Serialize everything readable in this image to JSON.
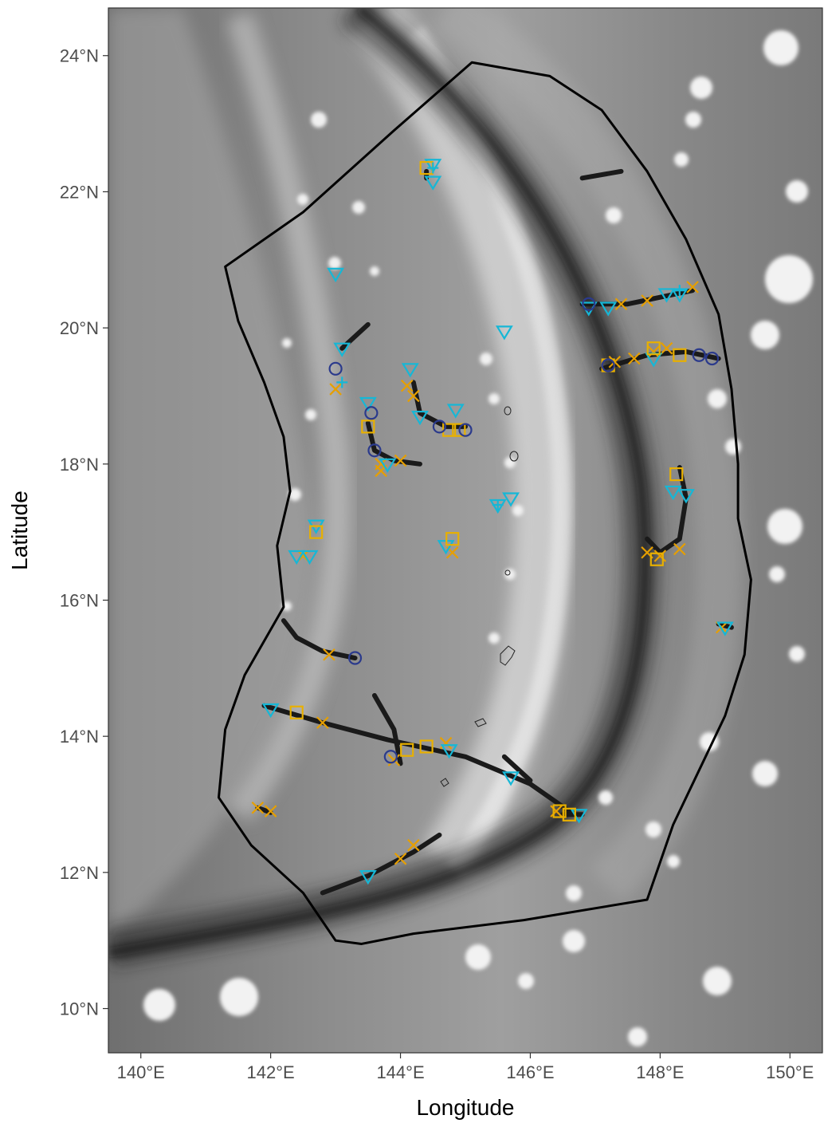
{
  "chart_data": {
    "type": "scatter",
    "title": "",
    "xlabel": "Longitude",
    "ylabel": "Latitude",
    "xlim": [
      139.5,
      150.5
    ],
    "ylim": [
      9.35,
      24.7
    ],
    "x_ticks": [
      {
        "value": 140,
        "label": "140°E"
      },
      {
        "value": 142,
        "label": "142°E"
      },
      {
        "value": 144,
        "label": "144°E"
      },
      {
        "value": 146,
        "label": "146°E"
      },
      {
        "value": 148,
        "label": "148°E"
      },
      {
        "value": 150,
        "label": "150°E"
      }
    ],
    "y_ticks": [
      {
        "value": 10,
        "label": "10°N"
      },
      {
        "value": 12,
        "label": "12°N"
      },
      {
        "value": 14,
        "label": "14°N"
      },
      {
        "value": 16,
        "label": "16°N"
      },
      {
        "value": 18,
        "label": "18°N"
      },
      {
        "value": 20,
        "label": "20°N"
      },
      {
        "value": 22,
        "label": "22°N"
      },
      {
        "value": 24,
        "label": "24°N"
      }
    ],
    "grid": false,
    "legend": "none",
    "basemap": "grayscale bathymetry",
    "colors": {
      "orange": "#e69f00",
      "gold": "#e8b000",
      "cyan": "#16b7d6",
      "navy": "#2b3a8c",
      "track": "#1a1a1a",
      "boundary": "#000000"
    },
    "study_area_boundary": [
      [
        145.1,
        23.9
      ],
      [
        146.3,
        23.7
      ],
      [
        147.1,
        23.2
      ],
      [
        147.8,
        22.3
      ],
      [
        148.4,
        21.3
      ],
      [
        148.9,
        20.2
      ],
      [
        149.1,
        19.1
      ],
      [
        149.2,
        18.0
      ],
      [
        149.2,
        17.2
      ],
      [
        149.4,
        16.3
      ],
      [
        149.3,
        15.2
      ],
      [
        149.0,
        14.3
      ],
      [
        148.6,
        13.5
      ],
      [
        148.2,
        12.7
      ],
      [
        147.8,
        11.6
      ],
      [
        145.9,
        11.3
      ],
      [
        144.2,
        11.1
      ],
      [
        143.4,
        10.95
      ],
      [
        143.0,
        11.0
      ],
      [
        142.5,
        11.7
      ],
      [
        141.7,
        12.4
      ],
      [
        141.2,
        13.1
      ],
      [
        141.3,
        14.1
      ],
      [
        141.6,
        14.9
      ],
      [
        142.2,
        15.9
      ],
      [
        142.1,
        16.8
      ],
      [
        142.3,
        17.6
      ],
      [
        142.2,
        18.4
      ],
      [
        141.9,
        19.2
      ],
      [
        141.5,
        20.1
      ],
      [
        141.3,
        20.9
      ],
      [
        142.5,
        21.7
      ],
      [
        143.9,
        22.9
      ]
    ],
    "tracks": [
      [
        [
          142.2,
          15.7
        ],
        [
          142.4,
          15.45
        ],
        [
          142.8,
          15.25
        ],
        [
          143.3,
          15.15
        ]
      ],
      [
        [
          141.9,
          14.45
        ],
        [
          142.8,
          14.2
        ],
        [
          143.8,
          13.95
        ],
        [
          145.0,
          13.7
        ],
        [
          146.0,
          13.3
        ],
        [
          146.6,
          12.9
        ]
      ],
      [
        [
          143.6,
          14.6
        ],
        [
          143.9,
          14.1
        ],
        [
          144.0,
          13.6
        ]
      ],
      [
        [
          142.8,
          11.7
        ],
        [
          143.5,
          11.95
        ],
        [
          144.2,
          12.3
        ],
        [
          144.6,
          12.55
        ]
      ],
      [
        [
          141.8,
          12.95
        ],
        [
          142.0,
          12.88
        ]
      ],
      [
        [
          143.1,
          19.7
        ],
        [
          143.5,
          20.05
        ]
      ],
      [
        [
          143.5,
          18.6
        ],
        [
          143.6,
          18.2
        ],
        [
          143.9,
          18.05
        ],
        [
          144.3,
          18.0
        ]
      ],
      [
        [
          144.2,
          19.2
        ],
        [
          144.3,
          18.75
        ],
        [
          144.7,
          18.55
        ],
        [
          145.0,
          18.55
        ]
      ],
      [
        [
          144.4,
          22.3
        ],
        [
          144.4,
          22.2
        ]
      ],
      [
        [
          146.8,
          22.2
        ],
        [
          147.4,
          22.3
        ]
      ],
      [
        [
          146.8,
          20.35
        ],
        [
          147.5,
          20.35
        ],
        [
          148.0,
          20.45
        ],
        [
          148.5,
          20.55
        ]
      ],
      [
        [
          147.1,
          19.4
        ],
        [
          147.8,
          19.6
        ],
        [
          148.4,
          19.65
        ],
        [
          148.9,
          19.55
        ]
      ],
      [
        [
          147.8,
          16.9
        ],
        [
          148.0,
          16.7
        ],
        [
          148.3,
          16.9
        ],
        [
          148.4,
          17.5
        ],
        [
          148.3,
          17.95
        ]
      ],
      [
        [
          145.6,
          13.7
        ],
        [
          146.0,
          13.35
        ]
      ],
      [
        [
          148.9,
          15.65
        ],
        [
          149.1,
          15.6
        ]
      ],
      [
        [
          146.5,
          12.85
        ],
        [
          146.8,
          12.85
        ]
      ]
    ],
    "series": [
      {
        "marker": "x",
        "color": "orange",
        "points": [
          [
            142.9,
            15.2
          ],
          [
            142.8,
            14.2
          ],
          [
            143.9,
            13.65
          ],
          [
            144.7,
            13.9
          ],
          [
            144.0,
            12.2
          ],
          [
            144.2,
            12.4
          ],
          [
            141.8,
            12.95
          ],
          [
            142.0,
            12.9
          ],
          [
            143.0,
            19.1
          ],
          [
            144.1,
            19.15
          ],
          [
            144.2,
            19.0
          ],
          [
            143.7,
            18.0
          ],
          [
            144.0,
            18.05
          ],
          [
            147.3,
            19.5
          ],
          [
            147.6,
            19.55
          ],
          [
            147.9,
            19.65
          ],
          [
            148.1,
            19.7
          ],
          [
            147.4,
            20.35
          ],
          [
            147.8,
            20.4
          ],
          [
            148.5,
            20.6
          ],
          [
            147.8,
            16.7
          ],
          [
            148.0,
            16.65
          ],
          [
            148.3,
            16.75
          ],
          [
            148.95,
            15.6
          ],
          [
            143.7,
            17.9
          ],
          [
            146.4,
            12.9
          ],
          [
            142.5,
            16.65
          ],
          [
            144.8,
            16.7
          ]
        ]
      },
      {
        "marker": "triangle-down",
        "color": "cyan",
        "points": [
          [
            142.0,
            14.4
          ],
          [
            143.5,
            11.95
          ],
          [
            144.75,
            13.8
          ],
          [
            145.7,
            13.4
          ],
          [
            146.75,
            12.85
          ],
          [
            142.4,
            16.65
          ],
          [
            142.6,
            16.65
          ],
          [
            142.7,
            17.1
          ],
          [
            143.0,
            20.8
          ],
          [
            143.1,
            19.7
          ],
          [
            143.5,
            18.9
          ],
          [
            143.8,
            18.0
          ],
          [
            144.15,
            19.4
          ],
          [
            144.3,
            18.7
          ],
          [
            144.5,
            22.4
          ],
          [
            144.5,
            22.15
          ],
          [
            144.7,
            16.8
          ],
          [
            144.85,
            18.8
          ],
          [
            145.5,
            17.4
          ],
          [
            145.7,
            17.5
          ],
          [
            145.6,
            19.95
          ],
          [
            146.9,
            20.3
          ],
          [
            147.2,
            20.3
          ],
          [
            147.9,
            19.55
          ],
          [
            148.2,
            17.6
          ],
          [
            148.4,
            17.55
          ],
          [
            148.1,
            20.5
          ],
          [
            148.3,
            20.5
          ],
          [
            149.0,
            15.6
          ]
        ]
      },
      {
        "marker": "square",
        "color": "gold",
        "points": [
          [
            142.4,
            14.35
          ],
          [
            144.1,
            13.8
          ],
          [
            144.4,
            13.85
          ],
          [
            146.45,
            12.9
          ],
          [
            146.6,
            12.85
          ],
          [
            142.7,
            17.0
          ],
          [
            143.5,
            18.55
          ],
          [
            144.4,
            22.35
          ],
          [
            144.8,
            16.9
          ],
          [
            144.75,
            18.5
          ],
          [
            144.9,
            18.5
          ],
          [
            147.2,
            19.45
          ],
          [
            147.9,
            19.7
          ],
          [
            148.3,
            19.6
          ],
          [
            148.25,
            17.85
          ],
          [
            147.95,
            16.6
          ]
        ]
      },
      {
        "marker": "circle",
        "color": "navy",
        "points": [
          [
            143.3,
            15.15
          ],
          [
            143.85,
            13.7
          ],
          [
            143.0,
            19.4
          ],
          [
            143.55,
            18.75
          ],
          [
            143.6,
            18.2
          ],
          [
            144.6,
            18.55
          ],
          [
            145.0,
            18.5
          ],
          [
            146.9,
            20.35
          ],
          [
            148.6,
            19.6
          ],
          [
            148.8,
            19.55
          ],
          [
            147.2,
            19.45
          ]
        ]
      },
      {
        "marker": "plus",
        "color": "cyan",
        "points": [
          [
            145.5,
            17.4
          ],
          [
            148.3,
            20.55
          ],
          [
            143.1,
            19.2
          ],
          [
            144.5,
            22.35
          ]
        ]
      }
    ]
  }
}
